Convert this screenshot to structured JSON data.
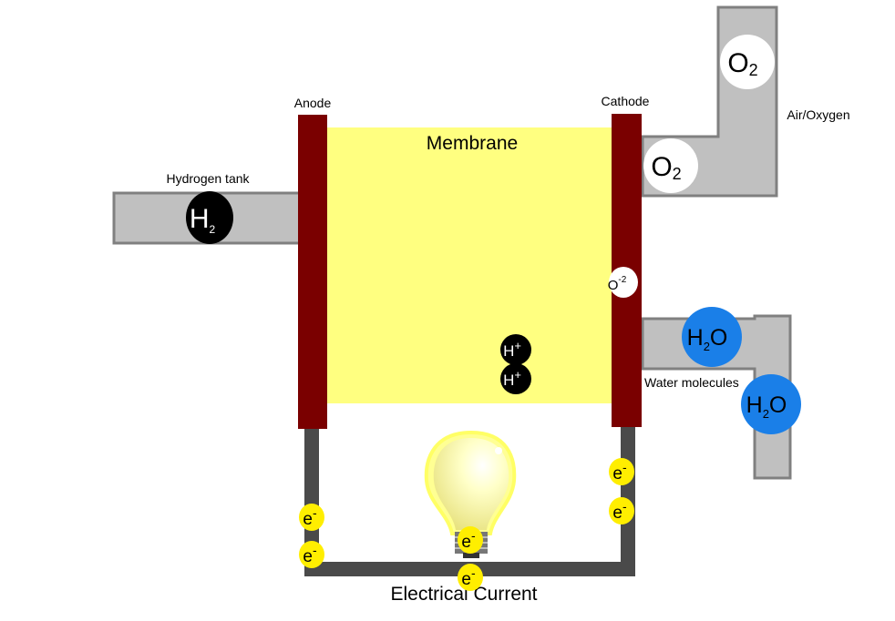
{
  "labels": {
    "anode": "Anode",
    "cathode": "Cathode",
    "membrane": "Membrane",
    "hydrogen_tank": "Hydrogen tank",
    "air_oxygen": "Air/Oxygen",
    "water_molecules": "Water molecules",
    "electrical_current": "Electrical Current"
  },
  "molecules": {
    "h2": {
      "main": "H",
      "sub": "2"
    },
    "o2": {
      "main": "O",
      "sub": "2"
    },
    "h2o": {
      "pre": "H",
      "sub": "2",
      "post": "O"
    },
    "oxide": {
      "main": "O",
      "sup": "-2"
    },
    "proton": {
      "main": "H",
      "sup": "+"
    },
    "electron": {
      "main": "e",
      "sup": "-"
    }
  },
  "colors": {
    "membrane": "#ffff80",
    "electrode": "#7a0000",
    "pipe_fill": "#c0c0c0",
    "pipe_stroke": "#808080",
    "wire": "#4a4a4a",
    "electron": "#ffee00",
    "water": "#1a7fe8",
    "hydrogen": "#000000",
    "oxygen": "#ffffff",
    "bulb_glow": "#ffff99"
  }
}
